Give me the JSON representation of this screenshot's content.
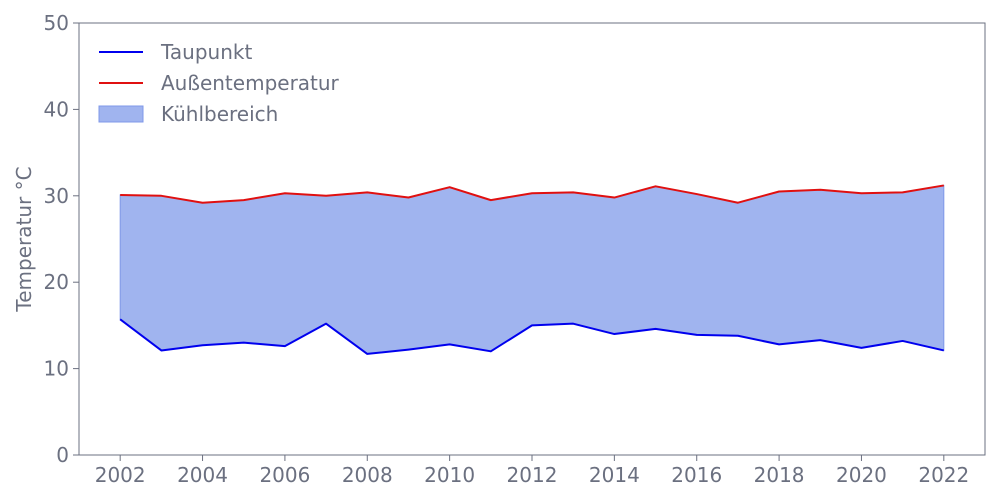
{
  "chart_data": {
    "type": "line",
    "title": "",
    "xlabel": "",
    "ylabel": "Temperatur °C",
    "x": [
      2002,
      2003,
      2004,
      2005,
      2006,
      2007,
      2008,
      2009,
      2010,
      2011,
      2012,
      2013,
      2014,
      2015,
      2016,
      2017,
      2018,
      2019,
      2020,
      2021,
      2022
    ],
    "xlim": [
      2001,
      2023
    ],
    "ylim": [
      0,
      50
    ],
    "xticks": [
      2002,
      2004,
      2006,
      2008,
      2010,
      2012,
      2014,
      2016,
      2018,
      2020,
      2022
    ],
    "yticks": [
      0,
      10,
      20,
      30,
      40,
      50
    ],
    "grid": false,
    "legend_position": "top-left",
    "series": [
      {
        "name": "Taupunkt",
        "color": "#0000ee",
        "values": [
          15.7,
          12.1,
          12.7,
          13.0,
          12.6,
          15.2,
          11.7,
          12.2,
          12.8,
          12.0,
          15.0,
          15.2,
          14.0,
          14.6,
          13.9,
          13.8,
          12.8,
          13.3,
          12.4,
          13.2,
          12.1
        ]
      },
      {
        "name": "Außentemperatur",
        "color": "#e01010",
        "values": [
          30.1,
          30.0,
          29.2,
          29.5,
          30.3,
          30.0,
          30.4,
          29.8,
          31.0,
          29.5,
          30.3,
          30.4,
          29.8,
          31.1,
          30.2,
          29.2,
          30.5,
          30.7,
          30.3,
          30.4,
          31.2
        ]
      }
    ],
    "fill": {
      "name": "Kühlbereich",
      "color": "#a0b4ef",
      "edge_color": "#7f98e8",
      "between": [
        "Taupunkt",
        "Außentemperatur"
      ]
    }
  },
  "colors": {
    "axis": "#6b7080",
    "text": "#6b7080"
  }
}
